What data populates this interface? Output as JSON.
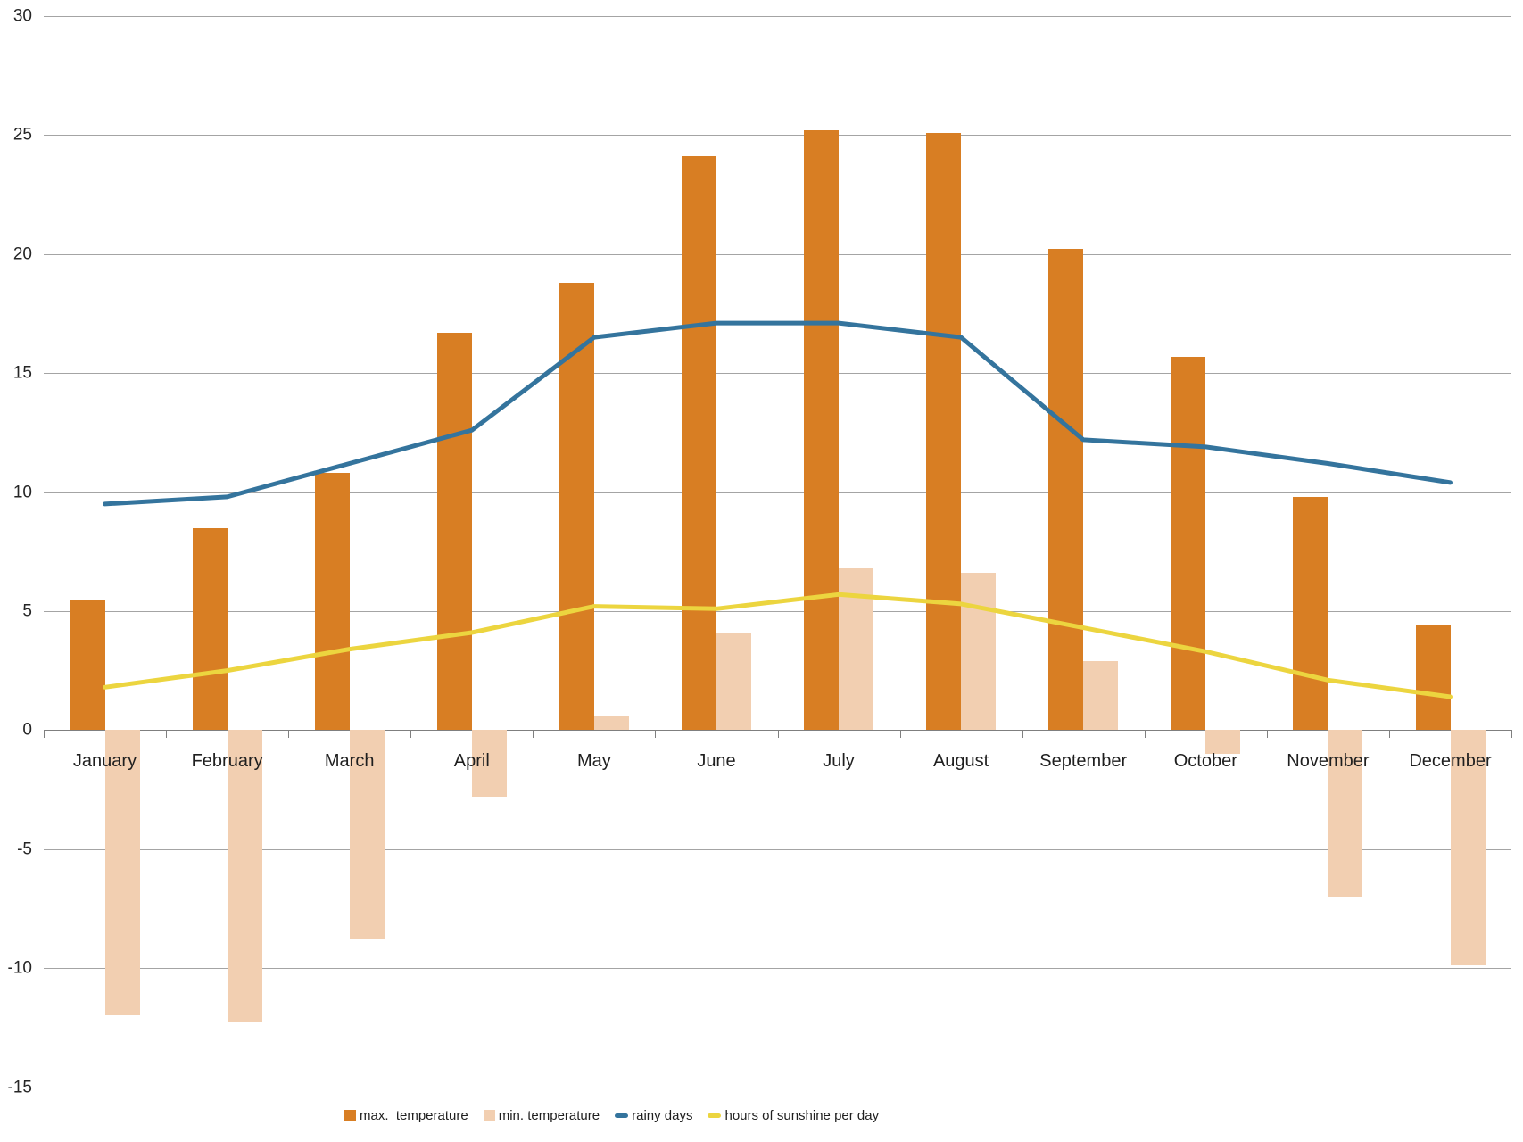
{
  "page": {
    "background": "#ffffff"
  },
  "chart_data": {
    "type": "bar",
    "categories": [
      "January",
      "February",
      "March",
      "April",
      "May",
      "June",
      "July",
      "August",
      "September",
      "October",
      "November",
      "December"
    ],
    "series": [
      {
        "name": "max.  temperature",
        "type": "bar",
        "color": "#d87e23",
        "values": [
          5.5,
          8.5,
          10.8,
          16.7,
          18.8,
          24.1,
          25.2,
          25.1,
          20.2,
          15.7,
          9.8,
          4.4
        ]
      },
      {
        "name": "min. temperature",
        "type": "bar",
        "color": "#f2cfb1",
        "values": [
          -12.0,
          -12.3,
          -8.8,
          -2.8,
          0.6,
          4.1,
          6.8,
          6.6,
          2.9,
          -1.0,
          -7.0,
          -9.9
        ]
      },
      {
        "name": "rainy days",
        "type": "line",
        "color": "#34749d",
        "values": [
          9.5,
          9.8,
          11.2,
          12.6,
          16.5,
          17.1,
          17.1,
          16.5,
          12.2,
          11.9,
          11.2,
          10.4
        ]
      },
      {
        "name": "hours of sunshine per day",
        "type": "line",
        "color": "#ecd53f",
        "values": [
          1.8,
          2.5,
          3.4,
          4.1,
          5.2,
          5.1,
          5.7,
          5.3,
          4.3,
          3.3,
          2.1,
          1.4
        ]
      }
    ],
    "xlabel": "",
    "ylabel": "",
    "ylim": [
      -15,
      30
    ],
    "ytick_step": 5,
    "yticks": [
      30,
      25,
      20,
      15,
      10,
      5,
      0,
      -5,
      -10,
      -15
    ],
    "grid": true,
    "legend_position": "bottom",
    "colors": {
      "gridline": "#a4a4a4",
      "axis": "#7f7f7f",
      "label_text": "#1f1f1f"
    }
  }
}
